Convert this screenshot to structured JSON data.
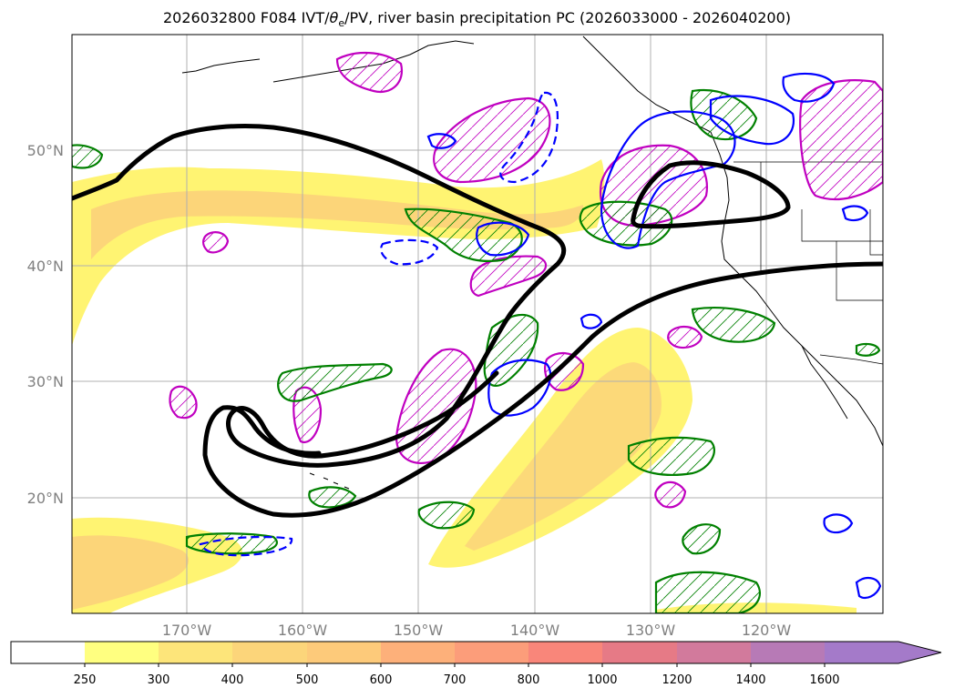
{
  "title": "2026032800 F084 IVT/θe/PV, river basin precipitation PC (2026033000 - 2026040200)",
  "title_parts": {
    "prefix": "2026032800 F084 IVT/",
    "theta": "θ",
    "sub": "e",
    "suffix": "/PV, river basin precipitation PC (2026033000 - 2026040200)"
  },
  "map": {
    "lon_range": [
      -180,
      -110
    ],
    "lat_range": [
      10,
      60
    ],
    "lat_ticks": [
      {
        "lat": 50,
        "label": "50°N"
      },
      {
        "lat": 40,
        "label": "40°N"
      },
      {
        "lat": 30,
        "label": "30°N"
      },
      {
        "lat": 20,
        "label": "20°N"
      }
    ],
    "lon_ticks": [
      {
        "lon": -170,
        "label": "170°W"
      },
      {
        "lon": -160,
        "label": "160°W"
      },
      {
        "lon": -150,
        "label": "150°W"
      },
      {
        "lon": -140,
        "label": "140°W"
      },
      {
        "lon": -130,
        "label": "130°W"
      },
      {
        "lon": -120,
        "label": "120°W"
      }
    ],
    "contour_colors": {
      "ivt_fill": "#fde64a",
      "pv_line": "#000000",
      "green": "#008000",
      "blue": "#0000ff",
      "magenta": "#c000c0"
    }
  },
  "colorbar": {
    "levels": [
      "250",
      "300",
      "400",
      "500",
      "600",
      "700",
      "800",
      "1000",
      "1200",
      "1400",
      "1600"
    ],
    "colors": [
      "#ffffff",
      "#ffff80",
      "#fde57a",
      "#fcd57a",
      "#fdca7a",
      "#fdb07a",
      "#fc9d7a",
      "#f9867a",
      "#e67a86",
      "#d27a9c",
      "#b77ab6",
      "#a47ac9"
    ],
    "extend": "max"
  }
}
